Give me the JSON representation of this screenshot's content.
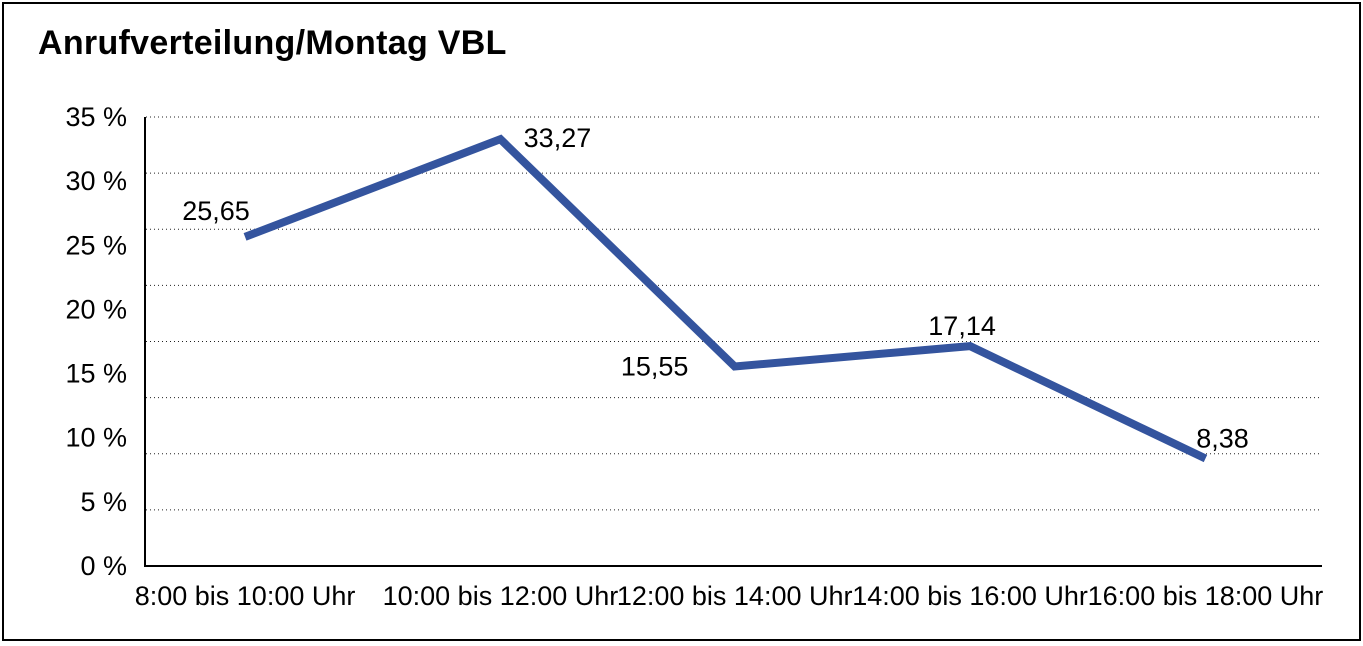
{
  "chart_data": {
    "type": "line",
    "title": "Anrufverteilung/Montag VBL",
    "categories": [
      "8:00 bis 10:00 Uhr",
      "10:00 bis 12:00 Uhr",
      "12:00 bis 14:00 Uhr",
      "14:00 bis 16:00 Uhr",
      "16:00 bis 18:00 Uhr"
    ],
    "values": [
      25.65,
      33.27,
      15.55,
      17.14,
      8.38
    ],
    "data_labels": [
      "25,65",
      "33,27",
      "15,55",
      "17,14",
      "8,38"
    ],
    "y_tick_labels": [
      "35 %",
      "30 %",
      "25 %",
      "20 %",
      "15 %",
      "10 %",
      "5 %",
      "0 %"
    ],
    "ylim": [
      0,
      35
    ],
    "xlabel": "",
    "ylabel": "",
    "legend": "none",
    "grid": "horizontal-dotted",
    "colors": {
      "line": "#34549E",
      "axis": "#000000",
      "gridline": "#222222",
      "text": "#000000",
      "background": "#ffffff",
      "border": "#000000"
    }
  }
}
